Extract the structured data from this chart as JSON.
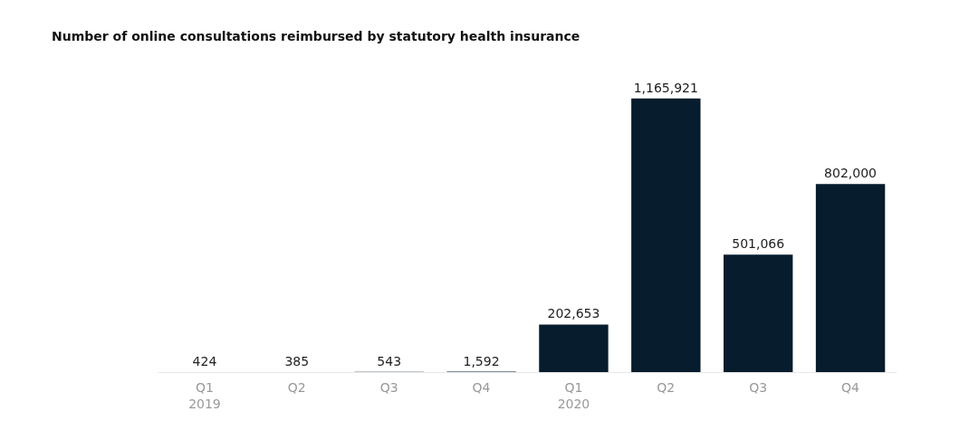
{
  "chart_data": {
    "type": "bar",
    "title": "Number of online consultations reimbursed by statutory health insurance",
    "categories": [
      "Q1\n2019",
      "Q2",
      "Q3",
      "Q4",
      "Q1\n2020",
      "Q2",
      "Q3",
      "Q4"
    ],
    "values": [
      424,
      385,
      543,
      1592,
      202653,
      1165921,
      501066,
      802000
    ],
    "value_labels": [
      "424",
      "385",
      "543",
      "1,592",
      "202,653",
      "1,165,921",
      "501,066",
      "802,000"
    ],
    "color": "#071c2c"
  }
}
